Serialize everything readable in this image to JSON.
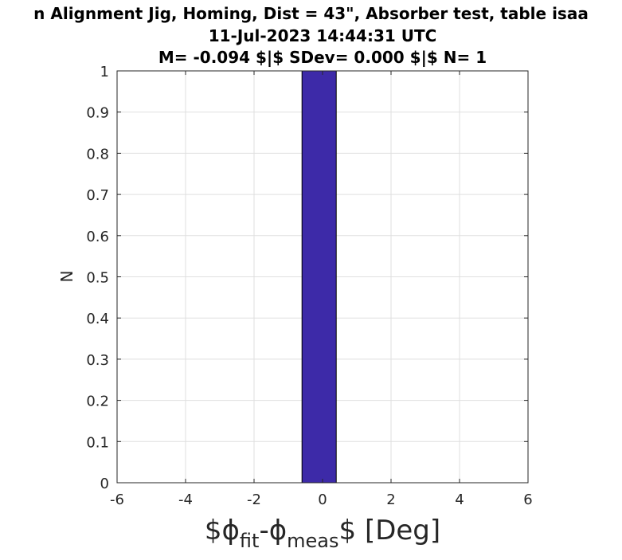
{
  "chart_data": {
    "type": "bar",
    "title_lines": [
      "n Alignment Jig, Homing, Dist = 43\", Absorber test, table isaa",
      "11-Jul-2023 14:44:31 UTC",
      "M= -0.094 $|$ SDev= 0.000 $|$ N= 1"
    ],
    "ylabel": "N",
    "xlabel": {
      "prefix": "$ϕ",
      "sub1": "fit",
      "mid": "-ϕ",
      "sub2": "meas",
      "suffix": "$ [Deg]"
    },
    "xlim": [
      -6,
      6
    ],
    "ylim": [
      0,
      1
    ],
    "xticks": [
      "-6",
      "-4",
      "-2",
      "0",
      "2",
      "4",
      "6"
    ],
    "yticks": [
      "0",
      "0.1",
      "0.2",
      "0.3",
      "0.4",
      "0.5",
      "0.6",
      "0.7",
      "0.8",
      "0.9",
      "1"
    ],
    "grid": true,
    "bins": [
      {
        "x0": -0.6,
        "x1": 0.4,
        "value": 1
      }
    ],
    "bar_color": "#3d2aa8"
  }
}
